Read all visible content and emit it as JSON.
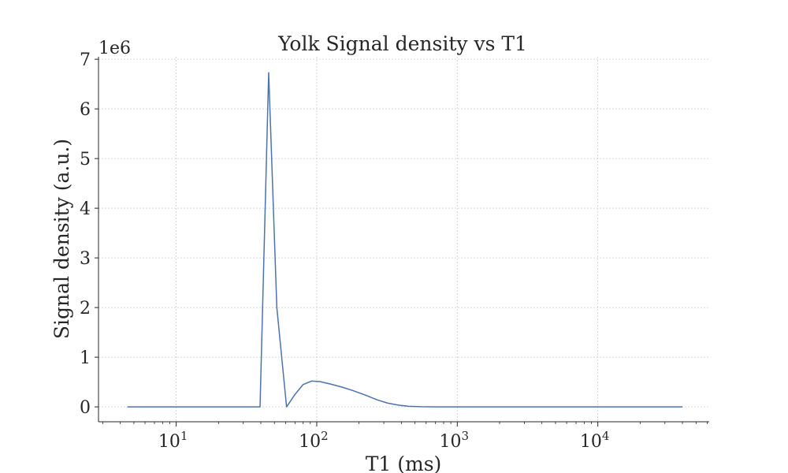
{
  "chart_data": {
    "type": "line",
    "title": "Yolk Signal density vs T1",
    "xlabel": "T1 (ms)",
    "ylabel": "Signal density (a.u.)",
    "y_offset_label": "1e6",
    "x_scale": "log",
    "xlim": [
      2.8,
      62000
    ],
    "ylim": [
      -300000,
      7050000
    ],
    "grid": true,
    "x_ticks": [
      {
        "value": 10,
        "base": "10",
        "exp": "1"
      },
      {
        "value": 100,
        "base": "10",
        "exp": "2"
      },
      {
        "value": 1000,
        "base": "10",
        "exp": "3"
      },
      {
        "value": 10000,
        "base": "10",
        "exp": "4"
      }
    ],
    "y_ticks": [
      {
        "value": 0,
        "label": "0"
      },
      {
        "value": 1000000,
        "label": "1"
      },
      {
        "value": 2000000,
        "label": "2"
      },
      {
        "value": 3000000,
        "label": "3"
      },
      {
        "value": 4000000,
        "label": "4"
      },
      {
        "value": 5000000,
        "label": "5"
      },
      {
        "value": 6000000,
        "label": "6"
      },
      {
        "value": 7000000,
        "label": "7"
      }
    ],
    "series": [
      {
        "color": "#4c72b0",
        "x": [
          4.5,
          10,
          20,
          30,
          39.5,
          45.5,
          52,
          61,
          70,
          80,
          92,
          105,
          125,
          150,
          180,
          220,
          270,
          320,
          380,
          450,
          550,
          700,
          1000,
          2000,
          5000,
          10000,
          40000
        ],
        "y": [
          0,
          0,
          0,
          0,
          0,
          6730000,
          2000000,
          0,
          250000,
          450000,
          520000,
          510000,
          460000,
          400000,
          330000,
          240000,
          140000,
          75000,
          35000,
          12000,
          3000,
          0,
          0,
          0,
          0,
          0,
          0
        ]
      }
    ]
  }
}
